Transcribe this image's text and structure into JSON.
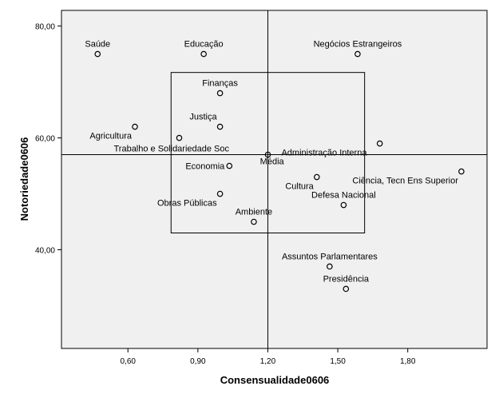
{
  "chart_data": {
    "type": "scatter",
    "xlabel": "Consensualidade0606",
    "ylabel": "Notoriedade0606",
    "xlim": [
      0.315,
      2.14
    ],
    "ylim": [
      22.35,
      82.8
    ],
    "x_ticks": [
      {
        "value": 0.6,
        "label": "0,60"
      },
      {
        "value": 0.9,
        "label": "0,90"
      },
      {
        "value": 1.2,
        "label": "1,20"
      },
      {
        "value": 1.5,
        "label": "1,50"
      },
      {
        "value": 1.8,
        "label": "1,80"
      }
    ],
    "y_ticks": [
      {
        "value": 40,
        "label": "40,00"
      },
      {
        "value": 60,
        "label": "60,00"
      },
      {
        "value": 80,
        "label": "80,00"
      }
    ],
    "background_color": "#f0f0f0",
    "reference_lines": {
      "x": 1.2,
      "y": 57
    },
    "highlight_box": {
      "x_min": 0.785,
      "x_max": 1.615,
      "y_min": 43,
      "y_max": 71.7
    },
    "points": [
      {
        "label": "Saúde",
        "x": 0.47,
        "y": 75,
        "label_pos": "above"
      },
      {
        "label": "Educação",
        "x": 0.925,
        "y": 75,
        "label_pos": "above"
      },
      {
        "label": "Negócios Estrangeiros",
        "x": 1.585,
        "y": 75,
        "label_pos": "above"
      },
      {
        "label": "Finanças",
        "x": 0.995,
        "y": 68,
        "label_pos": "above"
      },
      {
        "label": "Justiça",
        "x": 0.995,
        "y": 62,
        "label_pos": "above-left"
      },
      {
        "label": "Agricultura",
        "x": 0.63,
        "y": 62,
        "label_pos": "below-left"
      },
      {
        "label": "Trabalho e Solidariedade Soc",
        "x": 0.82,
        "y": 60,
        "label_pos": "below-right"
      },
      {
        "label": "Administração Interna",
        "x": 1.2,
        "y": 57,
        "label_pos": "right"
      },
      {
        "label": "Economia",
        "x": 1.035,
        "y": 55,
        "label_pos": "left"
      },
      {
        "label": "Média",
        "x": 1.68,
        "y": 59,
        "label_pos": "below-far-left"
      },
      {
        "label": "Cultura",
        "x": 1.41,
        "y": 53,
        "label_pos": "below-left"
      },
      {
        "label": "Ciência, Tecn Ens Superior",
        "x": 2.03,
        "y": 54,
        "label_pos": "below-left"
      },
      {
        "label": "Obras Públicas",
        "x": 0.995,
        "y": 50,
        "label_pos": "below-left"
      },
      {
        "label": "Defesa Nacional",
        "x": 1.525,
        "y": 48,
        "label_pos": "above"
      },
      {
        "label": "Ambiente",
        "x": 1.14,
        "y": 45,
        "label_pos": "above"
      },
      {
        "label": "Assuntos Parlamentares",
        "x": 1.465,
        "y": 37,
        "label_pos": "above"
      },
      {
        "label": "Presidência",
        "x": 1.535,
        "y": 33,
        "label_pos": "above"
      }
    ]
  }
}
